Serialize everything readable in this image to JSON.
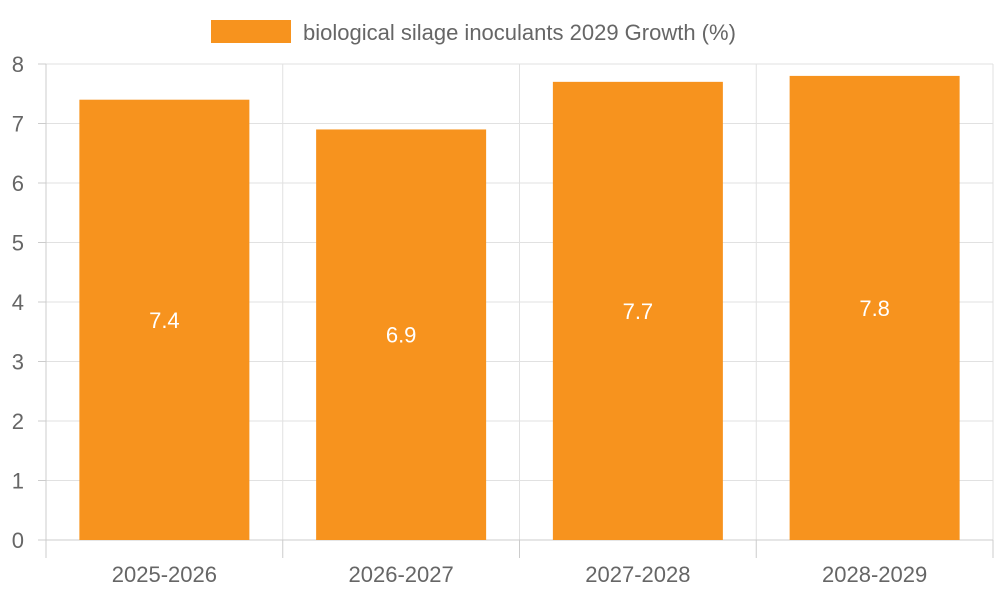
{
  "chart_data": {
    "type": "bar",
    "categories": [
      "2025-2026",
      "2026-2027",
      "2027-2028",
      "2028-2029"
    ],
    "series": [
      {
        "name": "biological silage inoculants 2029 Growth (%)",
        "values": [
          7.4,
          6.9,
          7.7,
          7.8
        ],
        "color": "#F7931E"
      }
    ],
    "ylim": [
      0,
      8
    ],
    "yticks": [
      0,
      1,
      2,
      3,
      4,
      5,
      6,
      7,
      8
    ],
    "grid": true,
    "legend": "top-center",
    "data_labels": true
  }
}
